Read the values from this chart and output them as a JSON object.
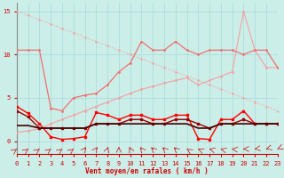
{
  "xlabel": "Vent moyen/en rafales ( km/h )",
  "xlim": [
    0,
    23
  ],
  "ylim": [
    -1.5,
    16
  ],
  "yticks": [
    0,
    5,
    10,
    15
  ],
  "xticks": [
    0,
    1,
    2,
    3,
    4,
    5,
    6,
    7,
    8,
    9,
    10,
    11,
    12,
    13,
    14,
    15,
    16,
    17,
    18,
    19,
    20,
    21,
    22,
    23
  ],
  "background_color": "#cceee8",
  "grid_color": "#aadddd",
  "line_descending_x": [
    0,
    1,
    2,
    3,
    4,
    5,
    6,
    7,
    8,
    9,
    10,
    11,
    12,
    13,
    14,
    15,
    16,
    17,
    18,
    19,
    20,
    21,
    22,
    23
  ],
  "line_descending_y": [
    15,
    14.5,
    14,
    13.5,
    13,
    12.5,
    12,
    11.5,
    11,
    10.5,
    10,
    9.5,
    9,
    8.5,
    8,
    7.5,
    7,
    6.5,
    6,
    5.5,
    5.0,
    4.5,
    4.0,
    3.5
  ],
  "line_ascending_x": [
    0,
    1,
    2,
    3,
    4,
    5,
    6,
    7,
    8,
    9,
    10,
    11,
    12,
    13,
    14,
    15,
    16,
    17,
    18,
    19,
    20,
    21,
    22,
    23
  ],
  "line_ascending_y": [
    1.0,
    1.2,
    1.4,
    2.0,
    2.5,
    3.0,
    3.5,
    4.0,
    4.5,
    5.0,
    5.5,
    6.0,
    6.3,
    6.7,
    7.0,
    7.3,
    6.5,
    7.0,
    7.5,
    8.0,
    15.0,
    10.5,
    8.5,
    8.5
  ],
  "line_wavy_x": [
    0,
    1,
    2,
    3,
    4,
    5,
    6,
    7,
    8,
    9,
    10,
    11,
    12,
    13,
    14,
    15,
    16,
    17,
    18,
    19,
    20,
    21,
    22,
    23
  ],
  "line_wavy_y": [
    10.5,
    10.5,
    10.5,
    3.8,
    3.5,
    5.0,
    5.3,
    5.5,
    6.5,
    8.0,
    9.0,
    11.5,
    10.5,
    10.5,
    11.5,
    10.5,
    10.0,
    10.5,
    10.5,
    10.5,
    10.0,
    10.5,
    10.5,
    8.5
  ],
  "line_lower_wavy_x": [
    0,
    1,
    2,
    3,
    4,
    5,
    6,
    7,
    8,
    9,
    10,
    11,
    12,
    13,
    14,
    15,
    16,
    17,
    18,
    19,
    20,
    21,
    22,
    23
  ],
  "line_lower_wavy_y": [
    4.0,
    3.2,
    2.0,
    0.5,
    0.2,
    0.3,
    0.5,
    3.3,
    3.0,
    2.5,
    3.0,
    3.0,
    2.5,
    2.5,
    3.0,
    3.0,
    0.3,
    0.2,
    2.5,
    2.5,
    3.5,
    2.0,
    2.0,
    2.0
  ],
  "line_flat1_x": [
    0,
    1,
    2,
    3,
    4,
    5,
    6,
    7,
    8,
    9,
    10,
    11,
    12,
    13,
    14,
    15,
    16,
    17,
    18,
    19,
    20,
    21,
    22,
    23
  ],
  "line_flat1_y": [
    3.5,
    2.8,
    1.5,
    1.5,
    1.5,
    1.5,
    1.5,
    2.0,
    2.0,
    2.0,
    2.5,
    2.5,
    2.0,
    2.0,
    2.5,
    2.5,
    2.0,
    1.5,
    2.0,
    2.0,
    2.5,
    2.0,
    2.0,
    2.0
  ],
  "line_flat2_x": [
    0,
    1,
    2,
    3,
    4,
    5,
    6,
    7,
    8,
    9,
    10,
    11,
    12,
    13,
    14,
    15,
    16,
    17,
    18,
    19,
    20,
    21,
    22,
    23
  ],
  "line_flat2_y": [
    1.8,
    1.8,
    1.5,
    1.5,
    1.5,
    1.5,
    1.5,
    2.0,
    2.0,
    2.0,
    2.0,
    2.0,
    2.0,
    2.0,
    2.0,
    2.0,
    1.5,
    1.5,
    2.0,
    2.0,
    2.0,
    2.0,
    2.0,
    2.0
  ],
  "colors": {
    "light_salmon": "#f4a0a0",
    "medium_salmon": "#f07070",
    "bright_red": "#ff0000",
    "dark_red": "#990000",
    "darkest": "#440000"
  },
  "arrow_dirs": [
    45,
    45,
    45,
    45,
    45,
    45,
    60,
    60,
    75,
    90,
    110,
    120,
    130,
    130,
    130,
    140,
    150,
    160,
    160,
    170,
    180,
    190,
    200,
    210
  ]
}
